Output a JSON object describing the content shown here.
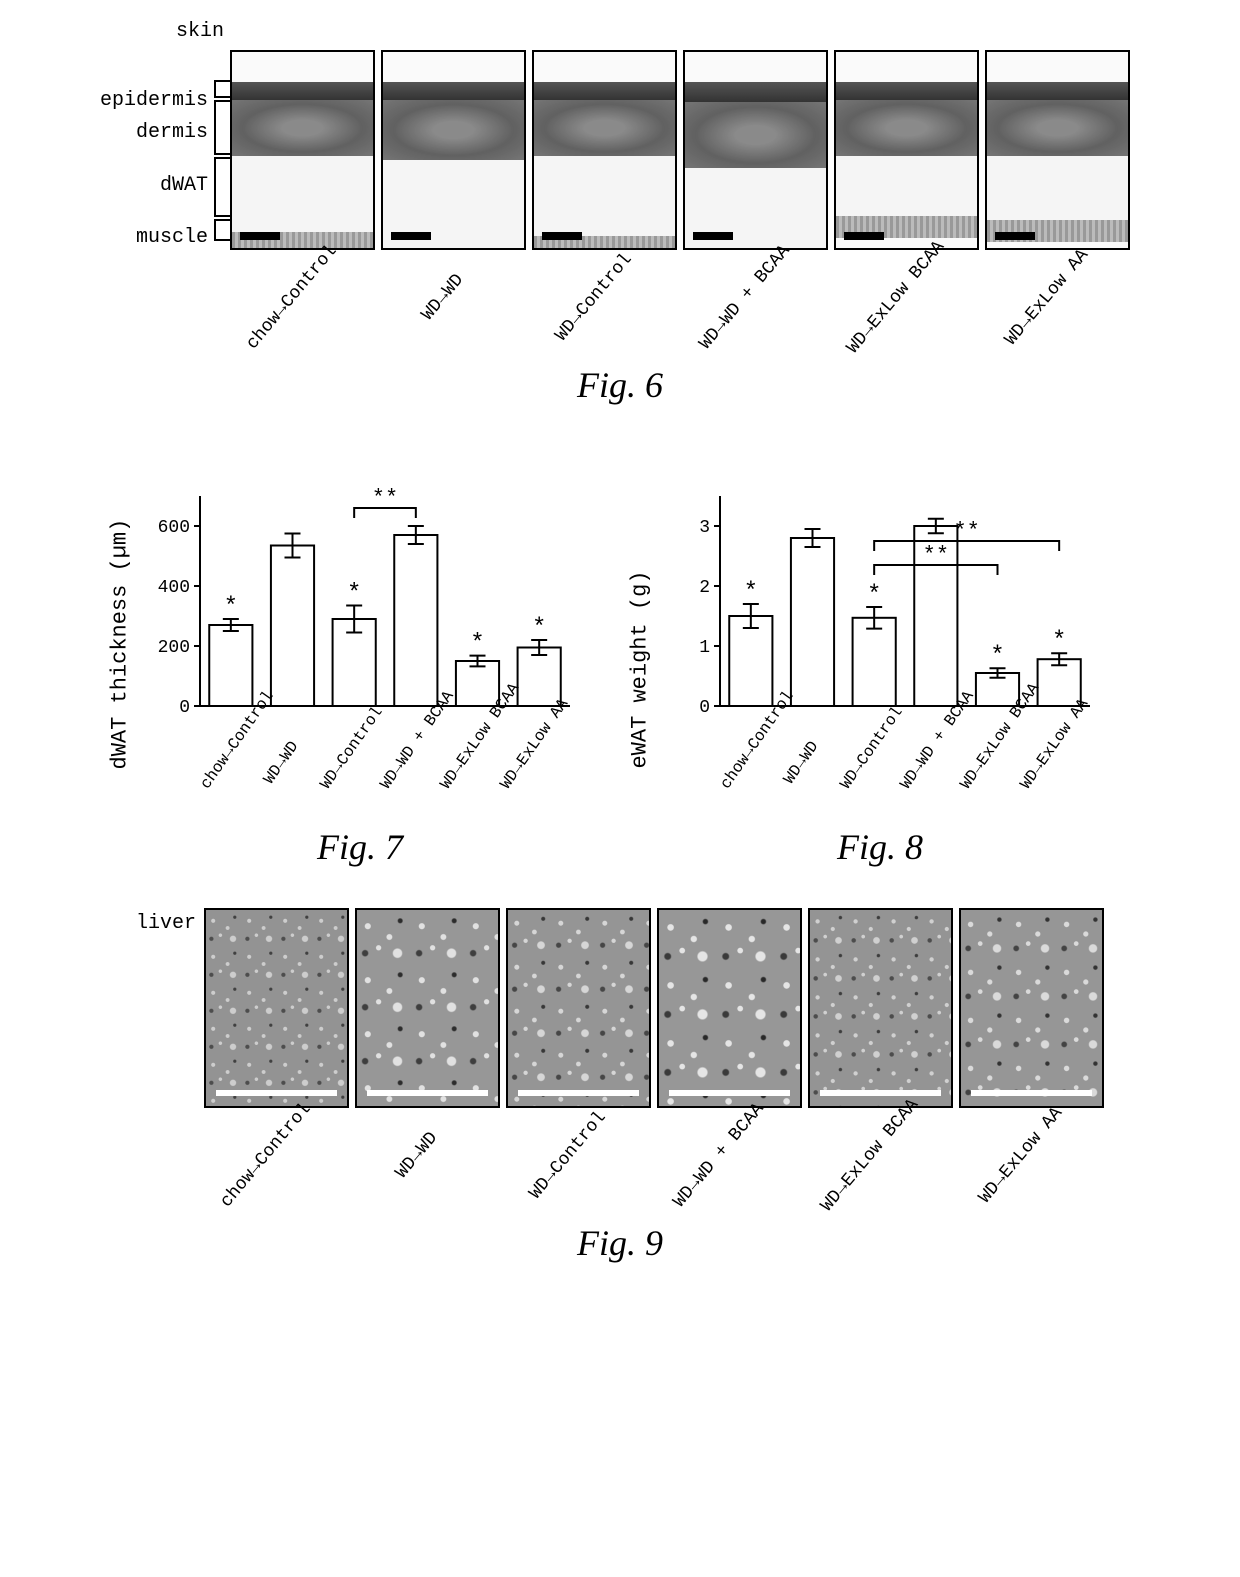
{
  "conditions": [
    "chow→Control",
    "WD→WD",
    "WD→Control",
    "WD→WD + BCAA",
    "WD→ExLow BCAA",
    "WD→ExLow AA"
  ],
  "fig6": {
    "caption": "Fig. 6",
    "title_label": "skin",
    "layer_labels": [
      "epidermis",
      "dermis",
      "dWAT",
      "muscle"
    ],
    "layer_heights_frac": [
      {
        "epi": 0.09,
        "dermis": 0.28,
        "dwat": 0.38,
        "muscle": 0.11
      },
      {
        "epi": 0.09,
        "dermis": 0.3,
        "dwat": 0.45,
        "muscle": 0.1
      },
      {
        "epi": 0.09,
        "dermis": 0.28,
        "dwat": 0.4,
        "muscle": 0.11
      },
      {
        "epi": 0.1,
        "dermis": 0.33,
        "dwat": 0.48,
        "muscle": 0.1
      },
      {
        "epi": 0.09,
        "dermis": 0.28,
        "dwat": 0.3,
        "muscle": 0.12
      },
      {
        "epi": 0.09,
        "dermis": 0.28,
        "dwat": 0.32,
        "muscle": 0.12
      }
    ],
    "panel_border_color": "#000000",
    "scalebar_color": "#000000"
  },
  "fig7": {
    "caption": "Fig. 7",
    "y_label": "dWAT thickness (µm)",
    "ylim": [
      0,
      700
    ],
    "yticks": [
      0,
      200,
      400,
      600
    ],
    "values": [
      270,
      535,
      290,
      570,
      150,
      195
    ],
    "errors": [
      20,
      40,
      45,
      30,
      18,
      25
    ],
    "sig_vs_wd": [
      "*",
      "",
      "*",
      "",
      "*",
      "*"
    ],
    "sig_bracket": {
      "from_idx": 2,
      "to_idx": 3,
      "label": "**"
    },
    "bar_fill": "#ffffff",
    "bar_stroke": "#000000",
    "axis_color": "#000000",
    "label_fontsize": 22,
    "tick_fontsize": 18
  },
  "fig8": {
    "caption": "Fig. 8",
    "y_label": "eWAT weight (g)",
    "ylim": [
      0,
      3.5
    ],
    "yticks": [
      0,
      1,
      2,
      3
    ],
    "values": [
      1.5,
      2.8,
      1.47,
      3.0,
      0.55,
      0.78
    ],
    "errors": [
      0.2,
      0.15,
      0.18,
      0.12,
      0.08,
      0.1
    ],
    "sig_vs_wd": [
      "*",
      "",
      "*",
      "",
      "*",
      "*"
    ],
    "sig_brackets": [
      {
        "from_idx": 2,
        "to_idx": 4,
        "label": "**",
        "level": 1
      },
      {
        "from_idx": 2,
        "to_idx": 5,
        "label": "**",
        "level": 2
      }
    ],
    "bar_fill": "#ffffff",
    "bar_stroke": "#000000",
    "axis_color": "#000000",
    "label_fontsize": 22,
    "tick_fontsize": 18
  },
  "fig9": {
    "caption": "Fig. 9",
    "title_label": "liver",
    "lipid_droplet_intensity": [
      0.15,
      0.6,
      0.35,
      0.7,
      0.2,
      0.45
    ],
    "panel_border_color": "#000000",
    "scalebar_color": "#ffffff"
  },
  "colors": {
    "background": "#ffffff",
    "text": "#000000"
  }
}
